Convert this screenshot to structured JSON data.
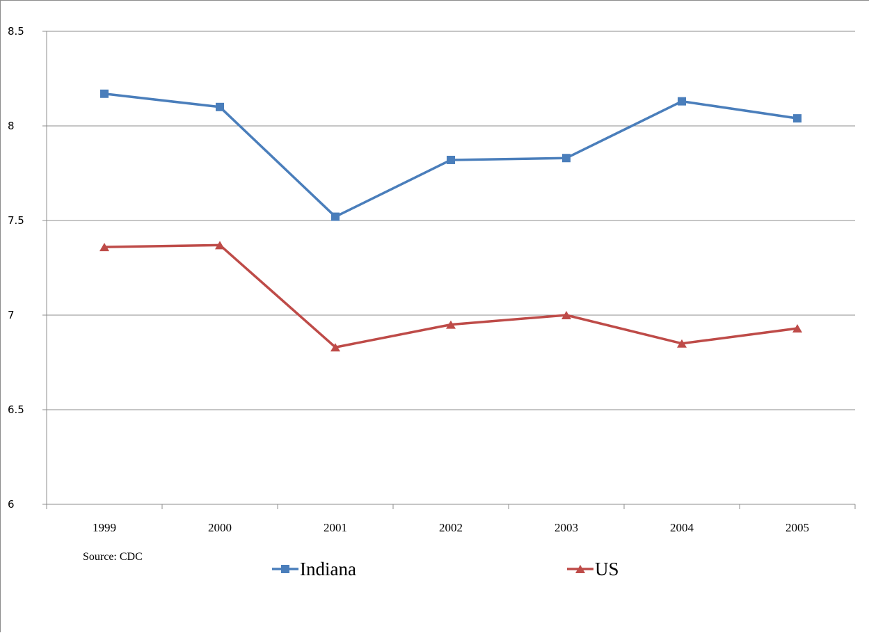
{
  "chart_data": {
    "type": "line",
    "x": [
      "1999",
      "2000",
      "2001",
      "2002",
      "2003",
      "2004",
      "2005"
    ],
    "series": [
      {
        "name": "Indiana",
        "color": "#4a7ebb",
        "marker": "square",
        "values": [
          8.17,
          8.1,
          7.52,
          7.82,
          7.83,
          8.13,
          8.04
        ]
      },
      {
        "name": "US",
        "color": "#be4b48",
        "marker": "triangle",
        "values": [
          7.36,
          7.37,
          6.83,
          6.95,
          7.0,
          6.85,
          6.93
        ]
      }
    ],
    "ylim": [
      6,
      8.5
    ],
    "yticks": [
      "6",
      "6.5",
      "7",
      "7.5",
      "8",
      "8.5"
    ],
    "grid": true,
    "legend_position": "bottom",
    "source": "Source:  CDC"
  }
}
